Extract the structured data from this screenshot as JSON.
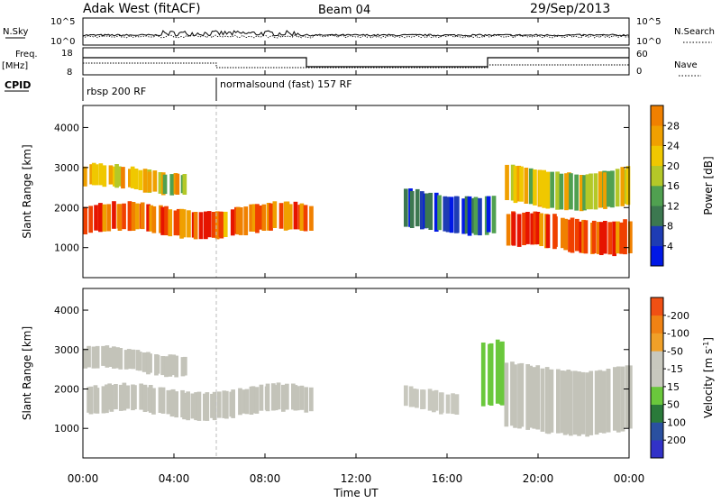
{
  "header": {
    "station": "Adak West (fitACF)",
    "beam": "Beam 04",
    "date": "29/Sep/2013"
  },
  "panels": {
    "nsky": {
      "label": "N.Sky",
      "left_ticks": [
        "10^5",
        "10^0"
      ],
      "right_ticks": [
        "10^5",
        "10^0"
      ],
      "right_label": "N.Search"
    },
    "freq": {
      "label_line1": "Freq.",
      "label_line2": "[MHz]",
      "left_ticks": [
        "18",
        "8"
      ],
      "right_ticks": [
        "60",
        "0"
      ],
      "right_label": "Nave"
    },
    "cpid": {
      "label": "CPID",
      "modes": [
        "rbsp 200 RF",
        "normalsound (fast) 157 RF"
      ]
    }
  },
  "colors": {
    "power_scale": [
      "#0018e6",
      "#1e3cb4",
      "#3c7850",
      "#50a050",
      "#b4c828",
      "#f0c800",
      "#f0a000",
      "#f08000",
      "#f04000",
      "#e61400"
    ],
    "velocity_scale": [
      "#3232c8",
      "#2a50a0",
      "#2a7a3a",
      "#6ac83c",
      "#c8c8be",
      "#c8c8be",
      "#f0a028",
      "#f08214",
      "#f05014",
      "#e61414"
    ],
    "ground_scatter": "#c3c3b9"
  },
  "chart_data": [
    {
      "type": "heatmap",
      "title": "Power",
      "ylabel": "Slant Range [km]",
      "ylim": [
        250,
        4550
      ],
      "yticks": [
        1000,
        2000,
        3000,
        4000
      ],
      "colorbar": {
        "label": "Power [dB]",
        "ticks": [
          4,
          8,
          12,
          16,
          20,
          24,
          28
        ],
        "range": [
          0,
          32
        ]
      },
      "features": [
        {
          "name": "band-a",
          "t_start": 0.0,
          "t_end": 10.0,
          "range_start": 1300,
          "range_end": 2050,
          "value": 25
        },
        {
          "name": "band-b",
          "t_start": 0.0,
          "t_end": 4.5,
          "range_start": 2400,
          "range_end": 3000,
          "value": 18
        },
        {
          "name": "band-c",
          "t_start": 14.0,
          "t_end": 18.0,
          "range_start": 1400,
          "range_end": 2400,
          "value": 6
        },
        {
          "name": "band-d",
          "t_start": 18.5,
          "t_end": 24.0,
          "range_start": 900,
          "range_end": 1800,
          "value": 27
        },
        {
          "name": "band-e",
          "t_start": 18.5,
          "t_end": 24.0,
          "range_start": 2000,
          "range_end": 3000,
          "value": 16
        }
      ]
    },
    {
      "type": "heatmap",
      "title": "Velocity",
      "ylabel": "Slant Range [km]",
      "ylim": [
        250,
        4550
      ],
      "yticks": [
        1000,
        2000,
        3000,
        4000
      ],
      "colorbar": {
        "label": "Velocity [m s^-1]",
        "ticks": [
          200,
          100,
          50,
          15,
          -15,
          -50,
          -100,
          -200
        ]
      },
      "features": [
        {
          "name": "ground-scatter-band",
          "t_start": 0.0,
          "t_end": 10.0,
          "range_start": 1300,
          "range_end": 2050,
          "value": 0
        },
        {
          "name": "upper-ground-scatter",
          "t_start": 0.0,
          "t_end": 4.5,
          "range_start": 2400,
          "range_end": 3000,
          "value": 0
        },
        {
          "name": "orange-patch",
          "t_start": 14.0,
          "t_end": 16.5,
          "range_start": 1400,
          "range_end": 2000,
          "value": -40
        },
        {
          "name": "green-streak",
          "t_start": 17.5,
          "t_end": 18.5,
          "range_start": 1500,
          "range_end": 3200,
          "value": 30
        },
        {
          "name": "late-ground-scatter",
          "t_start": 18.5,
          "t_end": 24.0,
          "range_start": 900,
          "range_end": 2600,
          "value": 0
        }
      ]
    }
  ],
  "x_axis": {
    "label": "Time UT",
    "ticks": [
      "00:00",
      "04:00",
      "08:00",
      "12:00",
      "16:00",
      "20:00",
      "00:00"
    ],
    "range_hours": [
      0,
      24
    ]
  }
}
